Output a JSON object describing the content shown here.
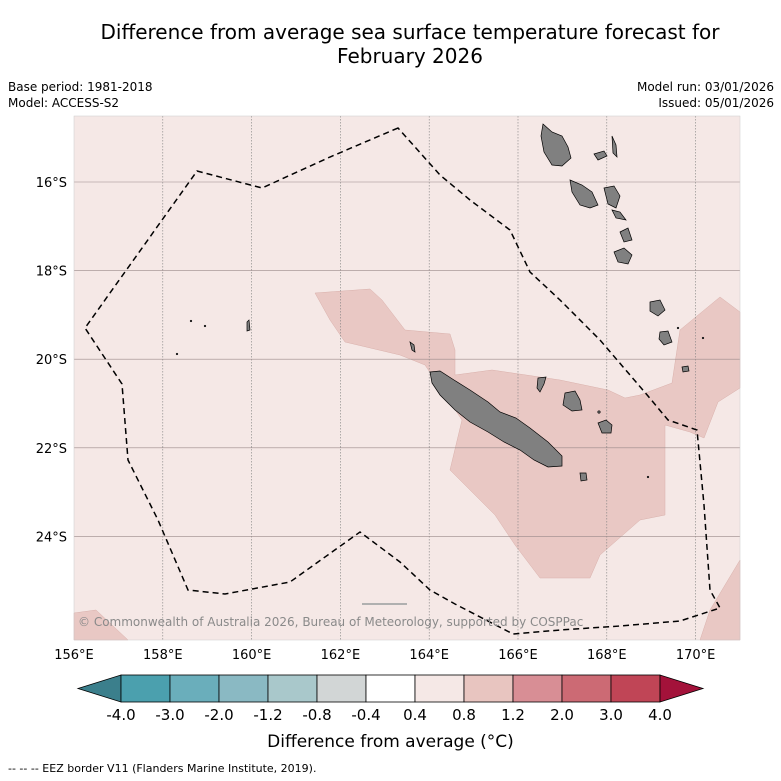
{
  "title": {
    "line1": "Difference from average sea surface temperature forecast for",
    "line2": "February 2026"
  },
  "meta": {
    "base_period": "Base period: 1981-2018",
    "model": "Model: ACCESS-S2",
    "model_run": "Model run: 03/01/2026",
    "issued": "Issued: 05/01/2026"
  },
  "map": {
    "lon_labels": [
      "156°E",
      "158°E",
      "160°E",
      "162°E",
      "164°E",
      "166°E",
      "168°E",
      "170°E"
    ],
    "lat_labels": [
      "16°S",
      "18°S",
      "20°S",
      "22°S",
      "24°S"
    ],
    "copyright": "© Commonwealth of Australia 2026, Bureau of Meteorology, supported by COSPPac",
    "colors": {
      "ocean_background": "#f5e8e6",
      "anomaly_fill": "#e9c8c4",
      "land": "#808080",
      "eez_line": "#000000"
    }
  },
  "colorbar": {
    "labels": [
      "-4.0",
      "-3.0",
      "-2.0",
      "-1.2",
      "-0.8",
      "-0.4",
      "0.4",
      "0.8",
      "1.2",
      "2.0",
      "3.0",
      "4.0"
    ],
    "colors": [
      "#3b7f8c",
      "#4ba0ae",
      "#6aaebb",
      "#8ab9c3",
      "#a9c8cb",
      "#d2d6d6",
      "#ffffff",
      "#f5e8e6",
      "#e8c5c0",
      "#d88e95",
      "#cc6a74",
      "#c04556",
      "#a3123a"
    ],
    "title": "Difference from average (°C)"
  },
  "footer": "--  --  -- EEZ border V11 (Flanders Marine Institute, 2019)."
}
